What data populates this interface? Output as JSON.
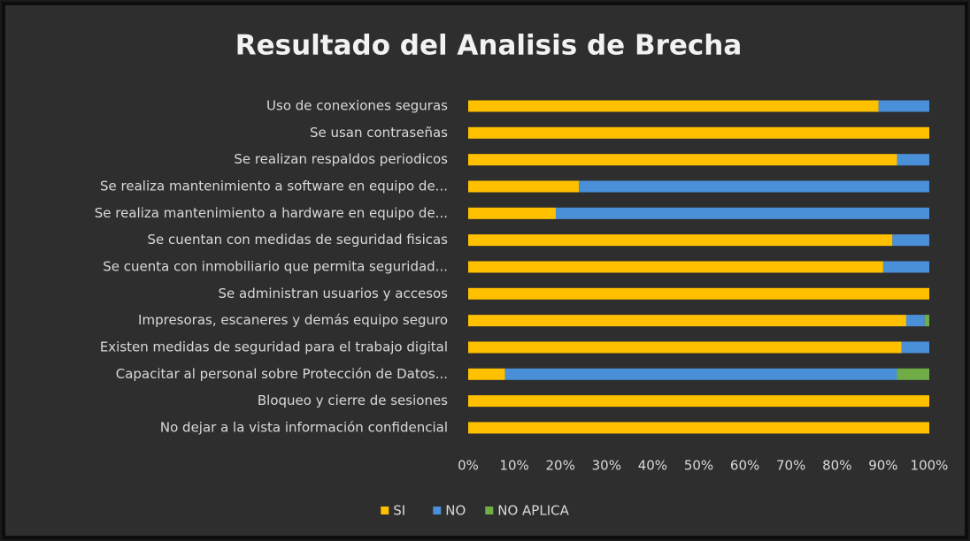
{
  "chart_data": {
    "type": "stacked_barh",
    "title": "Resultado del Analisis de Brecha",
    "categories": [
      "Uso de conexiones seguras",
      "Se usan contraseñas",
      "Se realizan respaldos periodicos",
      "Se realiza mantenimiento a software en equipo de...",
      "Se realiza mantenimiento a hardware en equipo de...",
      "Se cuentan con medidas de seguridad fisicas",
      "Se cuenta con inmobiliario que permita seguridad...",
      "Se administran usuarios y accesos",
      "Impresoras, escaneres y demás equipo seguro",
      "Existen medidas de seguridad para el trabajo digital",
      "Capacitar al personal sobre Protección de Datos...",
      "Bloqueo y cierre de sesiones",
      "No dejar a la vista información confidencial"
    ],
    "series": [
      {
        "name": "SI",
        "color": "#ffc000",
        "values": [
          89,
          100,
          93,
          24,
          19,
          92,
          90,
          100,
          95,
          94,
          8,
          100,
          100
        ]
      },
      {
        "name": "NO",
        "color": "#4a90d9",
        "values": [
          11,
          0,
          7,
          76,
          81,
          8,
          10,
          0,
          4,
          6,
          85,
          0,
          0
        ]
      },
      {
        "name": "NO APLICA",
        "color": "#70ad47",
        "values": [
          0,
          0,
          0,
          0,
          0,
          0,
          0,
          0,
          1,
          0,
          7,
          0,
          0
        ]
      }
    ],
    "xlim": [
      0,
      100
    ],
    "xticks": [
      {
        "value": 0,
        "label": "0%"
      },
      {
        "value": 10,
        "label": "10%"
      },
      {
        "value": 20,
        "label": "20%"
      },
      {
        "value": 30,
        "label": "30%"
      },
      {
        "value": 40,
        "label": "40%"
      },
      {
        "value": 50,
        "label": "50%"
      },
      {
        "value": 60,
        "label": "60%"
      },
      {
        "value": 70,
        "label": "70%"
      },
      {
        "value": 80,
        "label": "80%"
      },
      {
        "value": 90,
        "label": "90%"
      },
      {
        "value": 100,
        "label": "100%"
      }
    ],
    "grid": false,
    "legend": "bottom"
  }
}
